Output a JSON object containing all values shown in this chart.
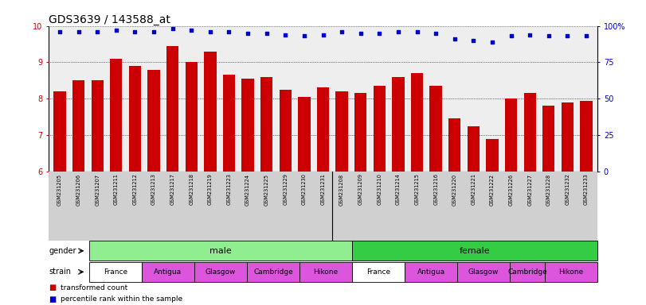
{
  "title": "GDS3639 / 143588_at",
  "samples": [
    "GSM231205",
    "GSM231206",
    "GSM231207",
    "GSM231211",
    "GSM231212",
    "GSM231213",
    "GSM231217",
    "GSM231218",
    "GSM231219",
    "GSM231223",
    "GSM231224",
    "GSM231225",
    "GSM231229",
    "GSM231230",
    "GSM231231",
    "GSM231208",
    "GSM231209",
    "GSM231210",
    "GSM231214",
    "GSM231215",
    "GSM231216",
    "GSM231220",
    "GSM231221",
    "GSM231222",
    "GSM231226",
    "GSM231227",
    "GSM231228",
    "GSM231232",
    "GSM231233"
  ],
  "bar_values": [
    8.2,
    8.5,
    8.5,
    9.1,
    8.9,
    8.8,
    9.45,
    9.0,
    9.3,
    8.65,
    8.55,
    8.6,
    8.25,
    8.05,
    8.3,
    8.2,
    8.15,
    8.35,
    8.6,
    8.7,
    8.35,
    7.45,
    7.25,
    6.9,
    8.0,
    8.15,
    7.8,
    7.9,
    7.95
  ],
  "percentile_values": [
    96,
    96,
    96,
    97,
    96,
    96,
    98,
    97,
    96,
    96,
    95,
    95,
    94,
    93,
    94,
    96,
    95,
    95,
    96,
    96,
    95,
    91,
    90,
    89,
    93,
    94,
    93,
    93,
    93
  ],
  "ylim_left": [
    6,
    10
  ],
  "ylim_right": [
    0,
    100
  ],
  "yticks_left": [
    6,
    7,
    8,
    9,
    10
  ],
  "yticks_right": [
    0,
    25,
    50,
    75,
    100
  ],
  "ytick_labels_right": [
    "0",
    "25",
    "50",
    "75",
    "100%"
  ],
  "bar_color": "#cc0000",
  "dot_color": "#0000cc",
  "male_n": 15,
  "female_n": 14,
  "gender_male_color": "#90ee90",
  "gender_female_color": "#33cc44",
  "strain_groups": [
    {
      "label": "France",
      "count": 3,
      "color": "#ffffff"
    },
    {
      "label": "Antigua",
      "count": 3,
      "color": "#dd55dd"
    },
    {
      "label": "Glasgow",
      "count": 3,
      "color": "#dd55dd"
    },
    {
      "label": "Cambridge",
      "count": 3,
      "color": "#dd55dd"
    },
    {
      "label": "Hikone",
      "count": 3,
      "color": "#dd55dd"
    },
    {
      "label": "France",
      "count": 3,
      "color": "#ffffff"
    },
    {
      "label": "Antigua",
      "count": 3,
      "color": "#dd55dd"
    },
    {
      "label": "Glasgow",
      "count": 3,
      "color": "#dd55dd"
    },
    {
      "label": "Cambridge",
      "count": 2,
      "color": "#dd55dd"
    },
    {
      "label": "Hikone",
      "count": 3,
      "color": "#dd55dd"
    }
  ],
  "legend_bar_label": "transformed count",
  "legend_dot_label": "percentile rank within the sample",
  "fig_width": 8.11,
  "fig_height": 3.84,
  "dpi": 100
}
